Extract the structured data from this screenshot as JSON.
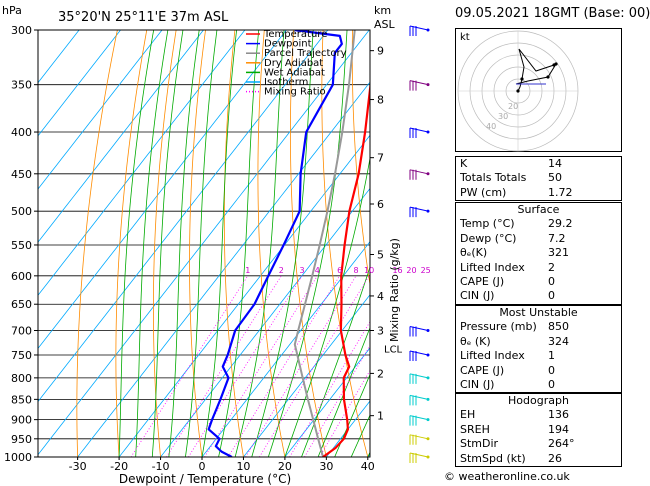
{
  "header": {
    "location": "35°20'N  25°11'E  37m  ASL",
    "date": "09.05.2021  18GMT  (Base: 00)",
    "hpa_label": "hPa",
    "km_label": "km",
    "asl_label": "ASL"
  },
  "chart_data": {
    "type": "line",
    "title": "35°20'N  25°11'E  37m  ASL",
    "xlabel": "Dewpoint / Temperature (°C)",
    "ylabel": "Mixing Ratio (g/kg)",
    "x_ticks": [
      -30,
      -20,
      -10,
      0,
      10,
      20,
      30,
      40
    ],
    "pressure_levels": [
      300,
      350,
      400,
      450,
      500,
      550,
      600,
      650,
      700,
      750,
      800,
      850,
      900,
      950,
      1000
    ],
    "legend": [
      "Temperature",
      "Dewpoint",
      "Parcel Trajectory",
      "Dry Adiabat",
      "Wet Adiabat",
      "Isotherm",
      "Mixing Ratio"
    ],
    "legend_colors": [
      "#ff0000",
      "#0000ff",
      "#888888",
      "#ff8c00",
      "#00aa00",
      "#00aaff",
      "#ff00ff"
    ],
    "legend_position": "top-right",
    "km_ticks": [
      {
        "p": 318,
        "label": "9"
      },
      {
        "p": 365,
        "label": "8"
      },
      {
        "p": 430,
        "label": "7"
      },
      {
        "p": 490,
        "label": "6"
      },
      {
        "p": 565,
        "label": "5"
      },
      {
        "p": 635,
        "label": "4"
      },
      {
        "p": 700,
        "label": "3"
      },
      {
        "p": 790,
        "label": "2"
      },
      {
        "p": 890,
        "label": "1"
      }
    ],
    "lcl_label": "LCL",
    "lcl_pressure": 728,
    "mixing_ratio_labels": [
      {
        "w": 1,
        "label": "1"
      },
      {
        "w": 2,
        "label": "2"
      },
      {
        "w": 3,
        "label": "3"
      },
      {
        "w": 4,
        "label": "4"
      },
      {
        "w": 6,
        "label": "6"
      },
      {
        "w": 8,
        "label": "8"
      },
      {
        "w": 10,
        "label": "10"
      },
      {
        "w": 16,
        "label": "16"
      },
      {
        "w": 20,
        "label": "20"
      },
      {
        "w": 25,
        "label": "25"
      }
    ],
    "temperature": [
      {
        "p": 1000,
        "t": 29.2
      },
      {
        "p": 975,
        "t": 30.5
      },
      {
        "p": 950,
        "t": 30.8
      },
      {
        "p": 925,
        "t": 30.0
      },
      {
        "p": 900,
        "t": 28.0
      },
      {
        "p": 850,
        "t": 23.4
      },
      {
        "p": 800,
        "t": 19.3
      },
      {
        "p": 775,
        "t": 18.5
      },
      {
        "p": 750,
        "t": 15.4
      },
      {
        "p": 700,
        "t": 9.7
      },
      {
        "p": 650,
        "t": 4.9
      },
      {
        "p": 600,
        "t": -0.5
      },
      {
        "p": 550,
        "t": -5.5
      },
      {
        "p": 500,
        "t": -10.7
      },
      {
        "p": 450,
        "t": -15.5
      },
      {
        "p": 400,
        "t": -21.8
      },
      {
        "p": 350,
        "t": -29.4
      },
      {
        "p": 300,
        "t": -37.7
      }
    ],
    "dewpoint": [
      {
        "p": 1000,
        "t": 7.2
      },
      {
        "p": 985,
        "t": 3.7
      },
      {
        "p": 970,
        "t": 1.3
      },
      {
        "p": 950,
        "t": 0.8
      },
      {
        "p": 925,
        "t": -3.6
      },
      {
        "p": 900,
        "t": -4.6
      },
      {
        "p": 850,
        "t": -6.4
      },
      {
        "p": 800,
        "t": -8.5
      },
      {
        "p": 775,
        "t": -12.0
      },
      {
        "p": 750,
        "t": -13.0
      },
      {
        "p": 700,
        "t": -15.8
      },
      {
        "p": 650,
        "t": -16.1
      },
      {
        "p": 600,
        "t": -18.1
      },
      {
        "p": 550,
        "t": -20.2
      },
      {
        "p": 500,
        "t": -22.7
      },
      {
        "p": 450,
        "t": -29.5
      },
      {
        "p": 400,
        "t": -36.0
      },
      {
        "p": 350,
        "t": -38.5
      },
      {
        "p": 320,
        "t": -44.0
      },
      {
        "p": 312,
        "t": -44.0
      },
      {
        "p": 305,
        "t": -46.0
      },
      {
        "p": 300,
        "t": -58.0
      }
    ],
    "parcel": [
      {
        "p": 1000,
        "t": 29.2
      },
      {
        "p": 950,
        "t": 24.6
      },
      {
        "p": 900,
        "t": 19.8
      },
      {
        "p": 850,
        "t": 14.7
      },
      {
        "p": 800,
        "t": 9.4
      },
      {
        "p": 750,
        "t": 3.8
      },
      {
        "p": 728,
        "t": 1.2
      },
      {
        "p": 700,
        "t": -0.6
      },
      {
        "p": 650,
        "t": -3.9
      },
      {
        "p": 600,
        "t": -7.5
      },
      {
        "p": 550,
        "t": -11.5
      },
      {
        "p": 500,
        "t": -16.0
      },
      {
        "p": 450,
        "t": -21.2
      },
      {
        "p": 400,
        "t": -27.3
      },
      {
        "p": 350,
        "t": -34.6
      },
      {
        "p": 300,
        "t": -43.5
      }
    ],
    "wind_colors": {
      "upper": "#0000ff",
      "mid": "#800080",
      "low": "#00cccc",
      "surface": "#cccc00"
    }
  },
  "hodograph": {
    "label": "kt",
    "ring_labels": [
      "20",
      "30",
      "40"
    ]
  },
  "indices": {
    "rows": [
      {
        "k": "K",
        "v": "14"
      },
      {
        "k": "Totals Totals",
        "v": "50"
      },
      {
        "k": "PW (cm)",
        "v": "1.72"
      }
    ]
  },
  "surface": {
    "title": "Surface",
    "rows": [
      {
        "k": "Temp (°C)",
        "v": "29.2"
      },
      {
        "k": "Dewp (°C)",
        "v": "7.2"
      },
      {
        "k": "θₑ(K)",
        "v": "321"
      },
      {
        "k": "Lifted Index",
        "v": "2"
      },
      {
        "k": "CAPE (J)",
        "v": "0"
      },
      {
        "k": "CIN (J)",
        "v": "0"
      }
    ]
  },
  "most_unstable": {
    "title": "Most Unstable",
    "rows": [
      {
        "k": "Pressure (mb)",
        "v": "850"
      },
      {
        "k": "θₑ (K)",
        "v": "324"
      },
      {
        "k": "Lifted Index",
        "v": "1"
      },
      {
        "k": "CAPE (J)",
        "v": "0"
      },
      {
        "k": "CIN (J)",
        "v": "0"
      }
    ]
  },
  "hodograph_table": {
    "title": "Hodograph",
    "rows": [
      {
        "k": "EH",
        "v": "136"
      },
      {
        "k": "SREH",
        "v": "194"
      },
      {
        "k": "StmDir",
        "v": "264°"
      },
      {
        "k": "StmSpd (kt)",
        "v": "26"
      }
    ]
  },
  "footer": {
    "copyright": "© weatheronline.co.uk"
  }
}
